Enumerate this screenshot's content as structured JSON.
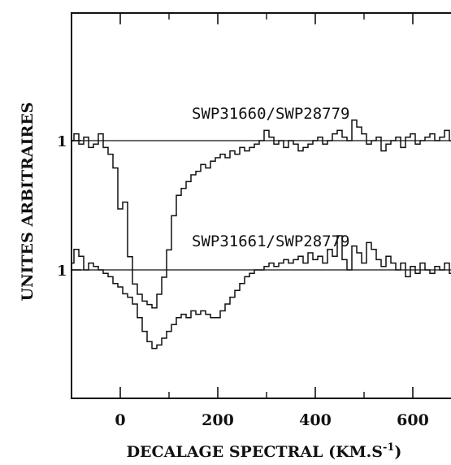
{
  "chart_data": {
    "type": "line",
    "xlabel_main": "DECALAGE SPECTRAL (KM.S",
    "xlabel_sup": "-1",
    "xlabel_close": ")",
    "ylabel": "UNITES ARBITRAIRES",
    "xlim": [
      -100,
      700
    ],
    "x_ticks": [
      0,
      200,
      400,
      600
    ],
    "y_tick_labels": [
      "1",
      "1"
    ],
    "grid": false,
    "legend": "none",
    "series": [
      {
        "name": "SWP31660/SWP28779",
        "continuum": 1.0,
        "offset": 0,
        "x": [
          -100,
          -90,
          -80,
          -70,
          -60,
          -50,
          -40,
          -30,
          -20,
          -10,
          0,
          10,
          20,
          30,
          40,
          50,
          60,
          70,
          80,
          90,
          100,
          110,
          120,
          130,
          140,
          150,
          160,
          170,
          180,
          190,
          200,
          210,
          220,
          230,
          240,
          250,
          260,
          270,
          280,
          290,
          300,
          310,
          320,
          330,
          340,
          350,
          360,
          370,
          380,
          390,
          400,
          410,
          420,
          430,
          440,
          450,
          460,
          470,
          480,
          490,
          500,
          510,
          520,
          530,
          540,
          550,
          560,
          570,
          580,
          590,
          600,
          610,
          620,
          630,
          640,
          650,
          660,
          670,
          680,
          690,
          700
        ],
        "y": [
          1.0,
          1.02,
          0.99,
          1.01,
          0.98,
          0.99,
          1.02,
          0.98,
          0.96,
          0.92,
          0.8,
          0.82,
          0.66,
          0.58,
          0.55,
          0.53,
          0.52,
          0.51,
          0.55,
          0.6,
          0.68,
          0.78,
          0.84,
          0.86,
          0.88,
          0.9,
          0.91,
          0.93,
          0.92,
          0.94,
          0.95,
          0.96,
          0.95,
          0.97,
          0.96,
          0.98,
          0.97,
          0.98,
          0.99,
          1.0,
          1.03,
          1.01,
          0.99,
          1.0,
          0.98,
          1.0,
          0.99,
          0.97,
          0.98,
          0.99,
          1.0,
          1.01,
          0.99,
          1.0,
          1.02,
          1.03,
          1.01,
          1.0,
          1.06,
          1.04,
          1.02,
          0.99,
          1.0,
          1.01,
          0.97,
          0.99,
          1.0,
          1.01,
          0.98,
          1.01,
          1.02,
          0.99,
          1.0,
          1.01,
          1.02,
          1.0,
          1.01,
          1.03,
          1.0,
          0.98,
          1.0
        ]
      },
      {
        "name": "SWP31661/SWP28779",
        "continuum": 1.0,
        "offset": -1,
        "x": [
          -100,
          -90,
          -80,
          -70,
          -60,
          -50,
          -40,
          -30,
          -20,
          -10,
          0,
          10,
          20,
          30,
          40,
          50,
          60,
          70,
          80,
          90,
          100,
          110,
          120,
          130,
          140,
          150,
          160,
          170,
          180,
          190,
          200,
          210,
          220,
          230,
          240,
          250,
          260,
          270,
          280,
          290,
          300,
          310,
          320,
          330,
          340,
          350,
          360,
          370,
          380,
          390,
          400,
          410,
          420,
          430,
          440,
          450,
          460,
          470,
          480,
          490,
          500,
          510,
          520,
          530,
          540,
          550,
          560,
          570,
          580,
          590,
          600,
          610,
          620,
          630,
          640,
          650,
          660,
          670,
          680,
          690,
          700
        ],
        "y": [
          1.02,
          1.06,
          1.04,
          1.0,
          1.02,
          1.01,
          1.0,
          0.99,
          0.98,
          0.96,
          0.95,
          0.93,
          0.92,
          0.9,
          0.86,
          0.82,
          0.79,
          0.77,
          0.78,
          0.8,
          0.82,
          0.84,
          0.86,
          0.87,
          0.86,
          0.88,
          0.87,
          0.88,
          0.87,
          0.86,
          0.86,
          0.88,
          0.9,
          0.92,
          0.94,
          0.96,
          0.98,
          0.99,
          1.0,
          1.0,
          1.01,
          1.02,
          1.01,
          1.02,
          1.03,
          1.02,
          1.03,
          1.04,
          1.02,
          1.05,
          1.03,
          1.04,
          1.02,
          1.06,
          1.04,
          1.1,
          1.03,
          1.0,
          1.07,
          1.05,
          1.02,
          1.08,
          1.06,
          1.03,
          1.01,
          1.04,
          1.02,
          1.0,
          1.02,
          0.98,
          1.01,
          0.99,
          1.02,
          1.0,
          0.99,
          1.01,
          1.0,
          1.02,
          0.99,
          1.03,
          1.0
        ]
      }
    ]
  }
}
